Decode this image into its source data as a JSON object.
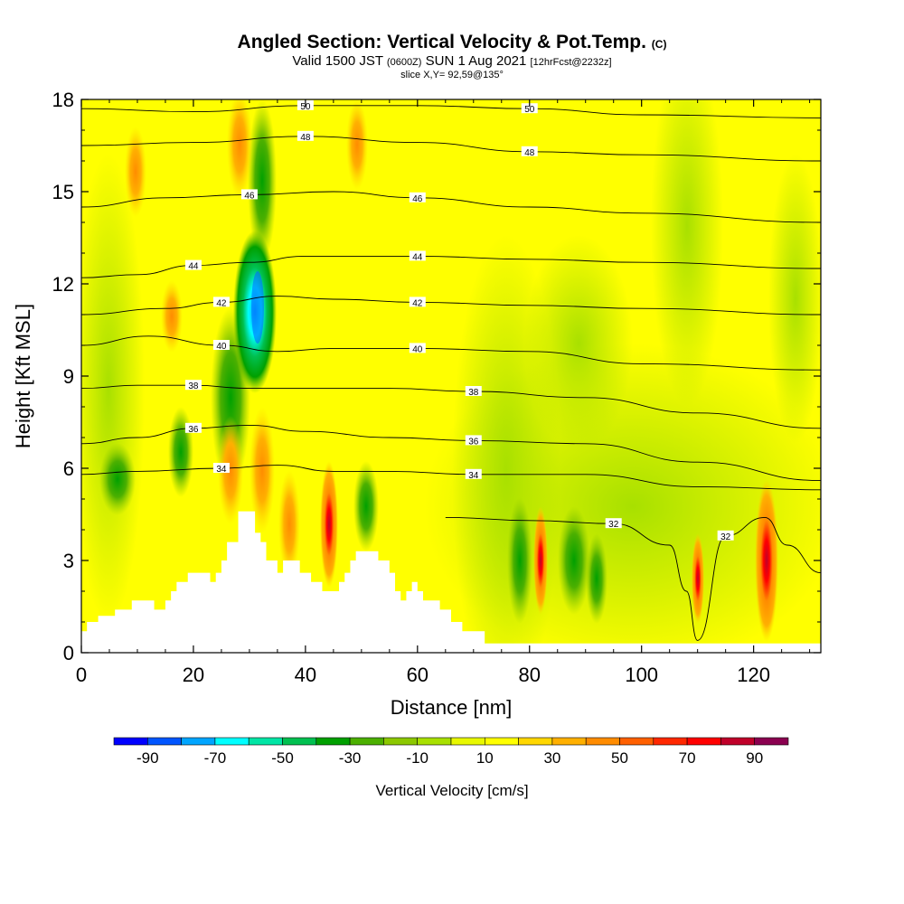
{
  "titles": {
    "main": "Angled Section: Vertical Velocity & Pot.Temp.",
    "main_tag": "(C)",
    "valid_a": "Valid 1500 JST",
    "valid_b": "(0600Z)",
    "valid_c": "SUN 1 Aug 2021",
    "valid_d": "[12hrFcst@2232z]",
    "slice": "slice X,Y= 92,59@135°"
  },
  "chart_data": {
    "type": "heatmap",
    "xlabel": "Distance [nm]",
    "ylabel": "Height [Kft MSL]",
    "xlim": [
      0,
      132
    ],
    "ylim": [
      0,
      18
    ],
    "x_ticks": [
      0,
      20,
      40,
      60,
      80,
      100,
      120
    ],
    "y_ticks": [
      0,
      3,
      6,
      9,
      12,
      15,
      18
    ],
    "colorbar": {
      "label": "Vertical Velocity [cm/s]",
      "tick_labels": [
        "-90",
        "-70",
        "-50",
        "-30",
        "-10",
        "10",
        "30",
        "50",
        "70",
        "90"
      ],
      "levels": [
        -100,
        -90,
        -80,
        -70,
        -60,
        -50,
        -40,
        -30,
        -20,
        -10,
        0,
        10,
        20,
        30,
        40,
        50,
        60,
        70,
        80,
        90,
        100
      ],
      "colors": [
        "#0000ff",
        "#0055ff",
        "#00a5ff",
        "#00ffff",
        "#00e5a5",
        "#00c050",
        "#00a000",
        "#4cb000",
        "#8cc800",
        "#a8e000",
        "#e8f800",
        "#ffff00",
        "#ffd700",
        "#ffb000",
        "#ff8c00",
        "#ff6000",
        "#ff2800",
        "#ff0000",
        "#c0002a",
        "#8b0050",
        "#55007f"
      ]
    },
    "terrain_profile_kft": [
      [
        0,
        0.7
      ],
      [
        1,
        0.7
      ],
      [
        1,
        1.0
      ],
      [
        3,
        1.0
      ],
      [
        3,
        1.2
      ],
      [
        6,
        1.2
      ],
      [
        6,
        1.4
      ],
      [
        9,
        1.4
      ],
      [
        9,
        1.7
      ],
      [
        13,
        1.7
      ],
      [
        13,
        1.4
      ],
      [
        15,
        1.4
      ],
      [
        15,
        1.7
      ],
      [
        16,
        1.7
      ],
      [
        16,
        2.0
      ],
      [
        17,
        2.0
      ],
      [
        17,
        2.3
      ],
      [
        19,
        2.3
      ],
      [
        19,
        2.6
      ],
      [
        23,
        2.6
      ],
      [
        23,
        2.3
      ],
      [
        24,
        2.3
      ],
      [
        24,
        2.6
      ],
      [
        25,
        2.6
      ],
      [
        25,
        3.0
      ],
      [
        26,
        3.0
      ],
      [
        26,
        3.6
      ],
      [
        28,
        3.6
      ],
      [
        28,
        4.6
      ],
      [
        31,
        4.6
      ],
      [
        31,
        3.9
      ],
      [
        32,
        3.9
      ],
      [
        32,
        3.6
      ],
      [
        33,
        3.6
      ],
      [
        33,
        3.0
      ],
      [
        35,
        3.0
      ],
      [
        35,
        2.6
      ],
      [
        36,
        2.6
      ],
      [
        36,
        3.0
      ],
      [
        39,
        3.0
      ],
      [
        39,
        2.6
      ],
      [
        41,
        2.6
      ],
      [
        41,
        2.3
      ],
      [
        43,
        2.3
      ],
      [
        43,
        2.0
      ],
      [
        46,
        2.0
      ],
      [
        46,
        2.3
      ],
      [
        47,
        2.3
      ],
      [
        47,
        2.6
      ],
      [
        48,
        2.6
      ],
      [
        48,
        3.0
      ],
      [
        49,
        3.0
      ],
      [
        49,
        3.3
      ],
      [
        53,
        3.3
      ],
      [
        53,
        3.0
      ],
      [
        55,
        3.0
      ],
      [
        55,
        2.6
      ],
      [
        56,
        2.6
      ],
      [
        56,
        2.0
      ],
      [
        57,
        2.0
      ],
      [
        57,
        1.7
      ],
      [
        58,
        1.7
      ],
      [
        58,
        2.0
      ],
      [
        59,
        2.0
      ],
      [
        59,
        2.3
      ],
      [
        60,
        2.3
      ],
      [
        60,
        2.0
      ],
      [
        61,
        2.0
      ],
      [
        61,
        1.7
      ],
      [
        64,
        1.7
      ],
      [
        64,
        1.4
      ],
      [
        66,
        1.4
      ],
      [
        66,
        1.0
      ],
      [
        68,
        1.0
      ],
      [
        68,
        0.7
      ],
      [
        72,
        0.7
      ],
      [
        72,
        0.3
      ],
      [
        132,
        0.3
      ]
    ],
    "isentropes": [
      {
        "label": "50",
        "x": [
          0,
          20,
          40,
          60,
          80,
          100,
          132
        ],
        "y": [
          17.7,
          17.6,
          17.8,
          17.8,
          17.7,
          17.5,
          17.4
        ]
      },
      {
        "label": "48",
        "x": [
          0,
          20,
          40,
          60,
          80,
          100,
          132
        ],
        "y": [
          16.5,
          16.6,
          16.8,
          16.6,
          16.3,
          16.2,
          16.0
        ]
      },
      {
        "label": "46",
        "x": [
          0,
          15,
          30,
          45,
          60,
          80,
          100,
          132
        ],
        "y": [
          14.5,
          14.8,
          14.9,
          15.0,
          14.8,
          14.5,
          14.3,
          14.0
        ]
      },
      {
        "label": "44",
        "x": [
          0,
          10,
          20,
          30,
          40,
          60,
          80,
          100,
          132
        ],
        "y": [
          12.2,
          12.3,
          12.6,
          12.7,
          12.9,
          12.9,
          12.8,
          12.7,
          12.5
        ]
      },
      {
        "label": "42",
        "x": [
          0,
          15,
          25,
          35,
          45,
          60,
          80,
          100,
          132
        ],
        "y": [
          11.0,
          11.2,
          11.4,
          11.6,
          11.5,
          11.4,
          11.3,
          11.2,
          11.0
        ]
      },
      {
        "label": "40",
        "x": [
          0,
          12,
          25,
          35,
          45,
          60,
          80,
          100,
          132
        ],
        "y": [
          10.0,
          10.3,
          10.0,
          9.8,
          9.9,
          9.9,
          9.8,
          9.4,
          9.2
        ]
      },
      {
        "label": "38",
        "x": [
          0,
          10,
          20,
          30,
          40,
          55,
          70,
          90,
          110,
          132
        ],
        "y": [
          8.6,
          8.7,
          8.7,
          8.6,
          8.6,
          8.6,
          8.5,
          8.3,
          7.8,
          7.3
        ]
      },
      {
        "label": "36",
        "x": [
          0,
          10,
          20,
          30,
          40,
          55,
          70,
          90,
          110,
          132
        ],
        "y": [
          6.8,
          7.0,
          7.3,
          7.4,
          7.2,
          7.0,
          6.9,
          6.8,
          6.2,
          5.6
        ]
      },
      {
        "label": "34",
        "x": [
          0,
          10,
          25,
          35,
          45,
          55,
          70,
          90,
          110,
          132
        ],
        "y": [
          5.8,
          5.9,
          6.0,
          6.1,
          5.9,
          5.9,
          5.8,
          5.8,
          5.4,
          5.3
        ]
      },
      {
        "label": "32",
        "x": [
          65,
          80,
          95,
          105,
          108,
          110,
          115,
          122,
          126,
          132
        ],
        "y": [
          4.4,
          4.3,
          4.2,
          3.5,
          2.0,
          0.4,
          3.8,
          4.4,
          3.5,
          2.6
        ]
      }
    ]
  }
}
